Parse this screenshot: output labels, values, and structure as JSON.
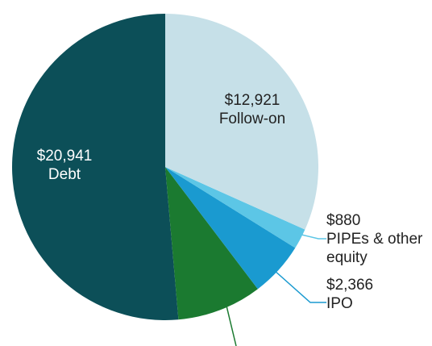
{
  "chart_data": {
    "type": "pie",
    "categories": [
      "Follow-on",
      "PIPEs & other equity",
      "IPO",
      null,
      "Debt"
    ],
    "values": [
      12921,
      880,
      2366,
      3650,
      20941
    ],
    "value_labels": [
      "$12,921",
      "$880",
      "$2,366",
      null,
      "$20,941"
    ],
    "colors": [
      "#c6e0e8",
      "#5cc6e6",
      "#1a9ad0",
      "#1b7a30",
      "#0c4f58"
    ],
    "start_angle": 0,
    "direction": "clockwise"
  }
}
